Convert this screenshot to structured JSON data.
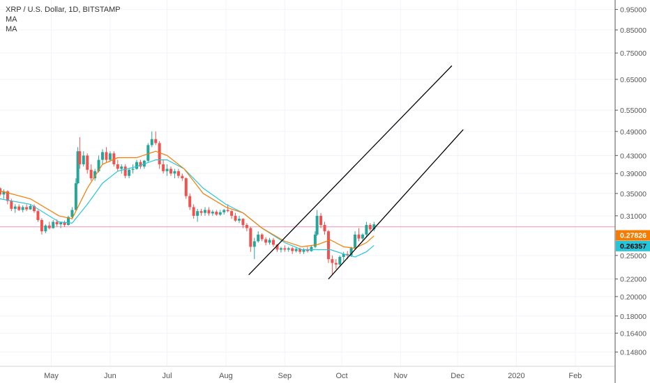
{
  "legend": {
    "title": "XRP / U.S. Dollar, 1D, BITSTAMP",
    "ma1": "MA",
    "ma2": "MA"
  },
  "colors": {
    "up": "#26a69a",
    "down": "#ef5350",
    "ma_fast": "#f57c00",
    "ma_slow": "#26c6da",
    "grid": "#f0f3fa",
    "axis_text": "#555555",
    "price_line": "#f48fb1",
    "channel": "#000000"
  },
  "chart_data": {
    "type": "candlestick",
    "y_scale": "log",
    "ylim": [
      0.137,
      1.0
    ],
    "x_range": [
      "2019-04-04",
      "2020-02-22"
    ],
    "x_ticks": [
      {
        "date": "2019-05-01",
        "label": "May"
      },
      {
        "date": "2019-06-01",
        "label": "Jun"
      },
      {
        "date": "2019-07-01",
        "label": "Jul"
      },
      {
        "date": "2019-08-01",
        "label": "Aug"
      },
      {
        "date": "2019-09-01",
        "label": "Sep"
      },
      {
        "date": "2019-10-01",
        "label": "Oct"
      },
      {
        "date": "2019-11-01",
        "label": "Nov"
      },
      {
        "date": "2019-12-01",
        "label": "Dec"
      },
      {
        "date": "2020-01-01",
        "label": "2020"
      },
      {
        "date": "2020-02-01",
        "label": "Feb"
      }
    ],
    "y_ticks": [
      "0.95000",
      "0.85000",
      "0.75000",
      "0.65000",
      "0.55000",
      "0.49000",
      "0.43000",
      "0.39000",
      "0.35000",
      "0.31000",
      "0.25000",
      "0.22000",
      "0.20000",
      "0.18000",
      "0.16400",
      "0.14800"
    ],
    "price_labels": [
      {
        "value": "0.27826",
        "color": "#f57c00"
      },
      {
        "value": "0.26357",
        "color": "#26c6da"
      }
    ],
    "current_price": 0.292,
    "ohlc": [
      [
        "2019-04-04",
        0.36,
        0.362,
        0.345,
        0.348
      ],
      [
        "2019-04-06",
        0.348,
        0.358,
        0.34,
        0.354
      ],
      [
        "2019-04-08",
        0.354,
        0.356,
        0.33,
        0.336
      ],
      [
        "2019-04-10",
        0.336,
        0.34,
        0.318,
        0.322
      ],
      [
        "2019-04-12",
        0.322,
        0.33,
        0.315,
        0.326
      ],
      [
        "2019-04-14",
        0.326,
        0.33,
        0.318,
        0.32
      ],
      [
        "2019-04-16",
        0.32,
        0.328,
        0.316,
        0.325
      ],
      [
        "2019-04-18",
        0.325,
        0.33,
        0.318,
        0.321
      ],
      [
        "2019-04-20",
        0.321,
        0.33,
        0.32,
        0.327
      ],
      [
        "2019-04-22",
        0.327,
        0.33,
        0.315,
        0.318
      ],
      [
        "2019-04-24",
        0.318,
        0.32,
        0.3,
        0.303
      ],
      [
        "2019-04-26",
        0.303,
        0.306,
        0.28,
        0.285
      ],
      [
        "2019-04-28",
        0.285,
        0.296,
        0.282,
        0.294
      ],
      [
        "2019-04-30",
        0.294,
        0.3,
        0.288,
        0.29
      ],
      [
        "2019-05-02",
        0.29,
        0.303,
        0.289,
        0.3
      ],
      [
        "2019-05-04",
        0.3,
        0.304,
        0.292,
        0.296
      ],
      [
        "2019-05-06",
        0.296,
        0.3,
        0.29,
        0.299
      ],
      [
        "2019-05-08",
        0.299,
        0.302,
        0.292,
        0.295
      ],
      [
        "2019-05-10",
        0.295,
        0.31,
        0.294,
        0.308
      ],
      [
        "2019-05-12",
        0.308,
        0.325,
        0.305,
        0.32
      ],
      [
        "2019-05-14",
        0.32,
        0.38,
        0.318,
        0.37
      ],
      [
        "2019-05-15",
        0.37,
        0.45,
        0.368,
        0.44
      ],
      [
        "2019-05-16",
        0.44,
        0.475,
        0.4,
        0.41
      ],
      [
        "2019-05-18",
        0.41,
        0.44,
        0.405,
        0.43
      ],
      [
        "2019-05-20",
        0.43,
        0.435,
        0.39,
        0.398
      ],
      [
        "2019-05-22",
        0.398,
        0.41,
        0.375,
        0.38
      ],
      [
        "2019-05-24",
        0.38,
        0.4,
        0.375,
        0.395
      ],
      [
        "2019-05-26",
        0.395,
        0.43,
        0.392,
        0.42
      ],
      [
        "2019-05-28",
        0.42,
        0.445,
        0.41,
        0.438
      ],
      [
        "2019-05-30",
        0.438,
        0.45,
        0.415,
        0.42
      ],
      [
        "2019-06-01",
        0.42,
        0.44,
        0.415,
        0.435
      ],
      [
        "2019-06-03",
        0.435,
        0.44,
        0.405,
        0.41
      ],
      [
        "2019-06-05",
        0.41,
        0.42,
        0.395,
        0.4
      ],
      [
        "2019-06-07",
        0.4,
        0.41,
        0.39,
        0.405
      ],
      [
        "2019-06-09",
        0.405,
        0.41,
        0.38,
        0.385
      ],
      [
        "2019-06-11",
        0.385,
        0.4,
        0.38,
        0.398
      ],
      [
        "2019-06-13",
        0.398,
        0.41,
        0.39,
        0.4
      ],
      [
        "2019-06-15",
        0.4,
        0.42,
        0.398,
        0.415
      ],
      [
        "2019-06-17",
        0.415,
        0.42,
        0.4,
        0.405
      ],
      [
        "2019-06-19",
        0.405,
        0.42,
        0.4,
        0.418
      ],
      [
        "2019-06-21",
        0.418,
        0.46,
        0.415,
        0.455
      ],
      [
        "2019-06-23",
        0.455,
        0.49,
        0.45,
        0.47
      ],
      [
        "2019-06-25",
        0.47,
        0.49,
        0.455,
        0.46
      ],
      [
        "2019-06-27",
        0.46,
        0.465,
        0.4,
        0.41
      ],
      [
        "2019-06-29",
        0.41,
        0.42,
        0.39,
        0.395
      ],
      [
        "2019-07-01",
        0.395,
        0.41,
        0.385,
        0.4
      ],
      [
        "2019-07-03",
        0.4,
        0.405,
        0.385,
        0.39
      ],
      [
        "2019-07-05",
        0.39,
        0.4,
        0.38,
        0.395
      ],
      [
        "2019-07-07",
        0.395,
        0.4,
        0.38,
        0.385
      ],
      [
        "2019-07-09",
        0.385,
        0.39,
        0.375,
        0.38
      ],
      [
        "2019-07-11",
        0.38,
        0.382,
        0.34,
        0.345
      ],
      [
        "2019-07-13",
        0.345,
        0.35,
        0.32,
        0.325
      ],
      [
        "2019-07-15",
        0.325,
        0.33,
        0.305,
        0.31
      ],
      [
        "2019-07-17",
        0.31,
        0.322,
        0.3,
        0.318
      ],
      [
        "2019-07-19",
        0.318,
        0.322,
        0.31,
        0.315
      ],
      [
        "2019-07-21",
        0.315,
        0.325,
        0.31,
        0.32
      ],
      [
        "2019-07-23",
        0.32,
        0.325,
        0.31,
        0.314
      ],
      [
        "2019-07-25",
        0.314,
        0.32,
        0.31,
        0.317
      ],
      [
        "2019-07-27",
        0.317,
        0.32,
        0.31,
        0.312
      ],
      [
        "2019-07-29",
        0.312,
        0.32,
        0.31,
        0.316
      ],
      [
        "2019-07-31",
        0.316,
        0.322,
        0.312,
        0.32
      ],
      [
        "2019-08-02",
        0.32,
        0.33,
        0.316,
        0.318
      ],
      [
        "2019-08-04",
        0.318,
        0.32,
        0.305,
        0.31
      ],
      [
        "2019-08-06",
        0.31,
        0.315,
        0.3,
        0.302
      ],
      [
        "2019-08-08",
        0.302,
        0.31,
        0.298,
        0.305
      ],
      [
        "2019-08-10",
        0.305,
        0.306,
        0.29,
        0.295
      ],
      [
        "2019-08-12",
        0.295,
        0.298,
        0.285,
        0.29
      ],
      [
        "2019-08-14",
        0.29,
        0.292,
        0.255,
        0.262
      ],
      [
        "2019-08-16",
        0.262,
        0.275,
        0.245,
        0.27
      ],
      [
        "2019-08-18",
        0.27,
        0.285,
        0.268,
        0.28
      ],
      [
        "2019-08-20",
        0.28,
        0.282,
        0.27,
        0.273
      ],
      [
        "2019-08-22",
        0.273,
        0.276,
        0.264,
        0.268
      ],
      [
        "2019-08-24",
        0.268,
        0.275,
        0.265,
        0.272
      ],
      [
        "2019-08-26",
        0.272,
        0.275,
        0.262,
        0.265
      ],
      [
        "2019-08-28",
        0.265,
        0.266,
        0.255,
        0.258
      ],
      [
        "2019-08-30",
        0.258,
        0.262,
        0.254,
        0.26
      ],
      [
        "2019-09-01",
        0.26,
        0.264,
        0.255,
        0.258
      ],
      [
        "2019-09-03",
        0.258,
        0.262,
        0.255,
        0.26
      ],
      [
        "2019-09-05",
        0.26,
        0.262,
        0.252,
        0.256
      ],
      [
        "2019-09-07",
        0.256,
        0.262,
        0.254,
        0.259
      ],
      [
        "2019-09-09",
        0.259,
        0.261,
        0.252,
        0.255
      ],
      [
        "2019-09-11",
        0.255,
        0.26,
        0.252,
        0.258
      ],
      [
        "2019-09-13",
        0.258,
        0.262,
        0.254,
        0.256
      ],
      [
        "2019-09-15",
        0.256,
        0.264,
        0.255,
        0.262
      ],
      [
        "2019-09-17",
        0.262,
        0.285,
        0.26,
        0.28
      ],
      [
        "2019-09-18",
        0.28,
        0.32,
        0.278,
        0.31
      ],
      [
        "2019-09-20",
        0.31,
        0.315,
        0.29,
        0.295
      ],
      [
        "2019-09-22",
        0.295,
        0.3,
        0.28,
        0.285
      ],
      [
        "2019-09-24",
        0.285,
        0.287,
        0.24,
        0.245
      ],
      [
        "2019-09-26",
        0.245,
        0.25,
        0.225,
        0.24
      ],
      [
        "2019-09-28",
        0.24,
        0.245,
        0.232,
        0.238
      ],
      [
        "2019-09-30",
        0.238,
        0.25,
        0.235,
        0.248
      ],
      [
        "2019-10-02",
        0.248,
        0.255,
        0.242,
        0.252
      ],
      [
        "2019-10-04",
        0.252,
        0.256,
        0.245,
        0.25
      ],
      [
        "2019-10-06",
        0.25,
        0.262,
        0.248,
        0.26
      ],
      [
        "2019-10-08",
        0.26,
        0.285,
        0.258,
        0.28
      ],
      [
        "2019-10-10",
        0.28,
        0.29,
        0.27,
        0.274
      ],
      [
        "2019-10-12",
        0.274,
        0.282,
        0.27,
        0.28
      ],
      [
        "2019-10-14",
        0.28,
        0.3,
        0.276,
        0.295
      ],
      [
        "2019-10-16",
        0.295,
        0.298,
        0.285,
        0.288
      ],
      [
        "2019-10-18",
        0.288,
        0.3,
        0.285,
        0.296
      ]
    ],
    "ma_fast_label": "0.27826",
    "ma_slow_label": "0.26357",
    "ma_fast": [
      [
        "2019-04-04",
        0.355
      ],
      [
        "2019-04-20",
        0.34
      ],
      [
        "2019-05-05",
        0.31
      ],
      [
        "2019-05-12",
        0.305
      ],
      [
        "2019-05-20",
        0.36
      ],
      [
        "2019-05-28",
        0.41
      ],
      [
        "2019-06-05",
        0.425
      ],
      [
        "2019-06-15",
        0.425
      ],
      [
        "2019-06-25",
        0.44
      ],
      [
        "2019-07-01",
        0.43
      ],
      [
        "2019-07-10",
        0.4
      ],
      [
        "2019-07-20",
        0.35
      ],
      [
        "2019-08-01",
        0.325
      ],
      [
        "2019-08-10",
        0.315
      ],
      [
        "2019-08-20",
        0.29
      ],
      [
        "2019-09-01",
        0.27
      ],
      [
        "2019-09-10",
        0.262
      ],
      [
        "2019-09-18",
        0.265
      ],
      [
        "2019-09-25",
        0.272
      ],
      [
        "2019-10-02",
        0.262
      ],
      [
        "2019-10-08",
        0.26
      ],
      [
        "2019-10-14",
        0.268
      ],
      [
        "2019-10-18",
        0.278
      ]
    ],
    "ma_slow": [
      [
        "2019-04-04",
        0.34
      ],
      [
        "2019-04-20",
        0.33
      ],
      [
        "2019-05-05",
        0.3
      ],
      [
        "2019-05-12",
        0.298
      ],
      [
        "2019-05-20",
        0.33
      ],
      [
        "2019-05-28",
        0.37
      ],
      [
        "2019-06-05",
        0.395
      ],
      [
        "2019-06-15",
        0.405
      ],
      [
        "2019-06-25",
        0.42
      ],
      [
        "2019-07-01",
        0.42
      ],
      [
        "2019-07-10",
        0.4
      ],
      [
        "2019-07-20",
        0.36
      ],
      [
        "2019-08-01",
        0.33
      ],
      [
        "2019-08-10",
        0.315
      ],
      [
        "2019-08-20",
        0.29
      ],
      [
        "2019-09-01",
        0.268
      ],
      [
        "2019-09-10",
        0.258
      ],
      [
        "2019-09-18",
        0.258
      ],
      [
        "2019-09-25",
        0.258
      ],
      [
        "2019-10-02",
        0.252
      ],
      [
        "2019-10-08",
        0.248
      ],
      [
        "2019-10-14",
        0.255
      ],
      [
        "2019-10-18",
        0.264
      ]
    ],
    "trendlines": [
      {
        "start": [
          "2019-08-13",
          0.225
        ],
        "end": [
          "2019-11-28",
          0.7
        ]
      },
      {
        "start": [
          "2019-09-24",
          0.22
        ],
        "end": [
          "2019-12-04",
          0.495
        ]
      }
    ]
  }
}
